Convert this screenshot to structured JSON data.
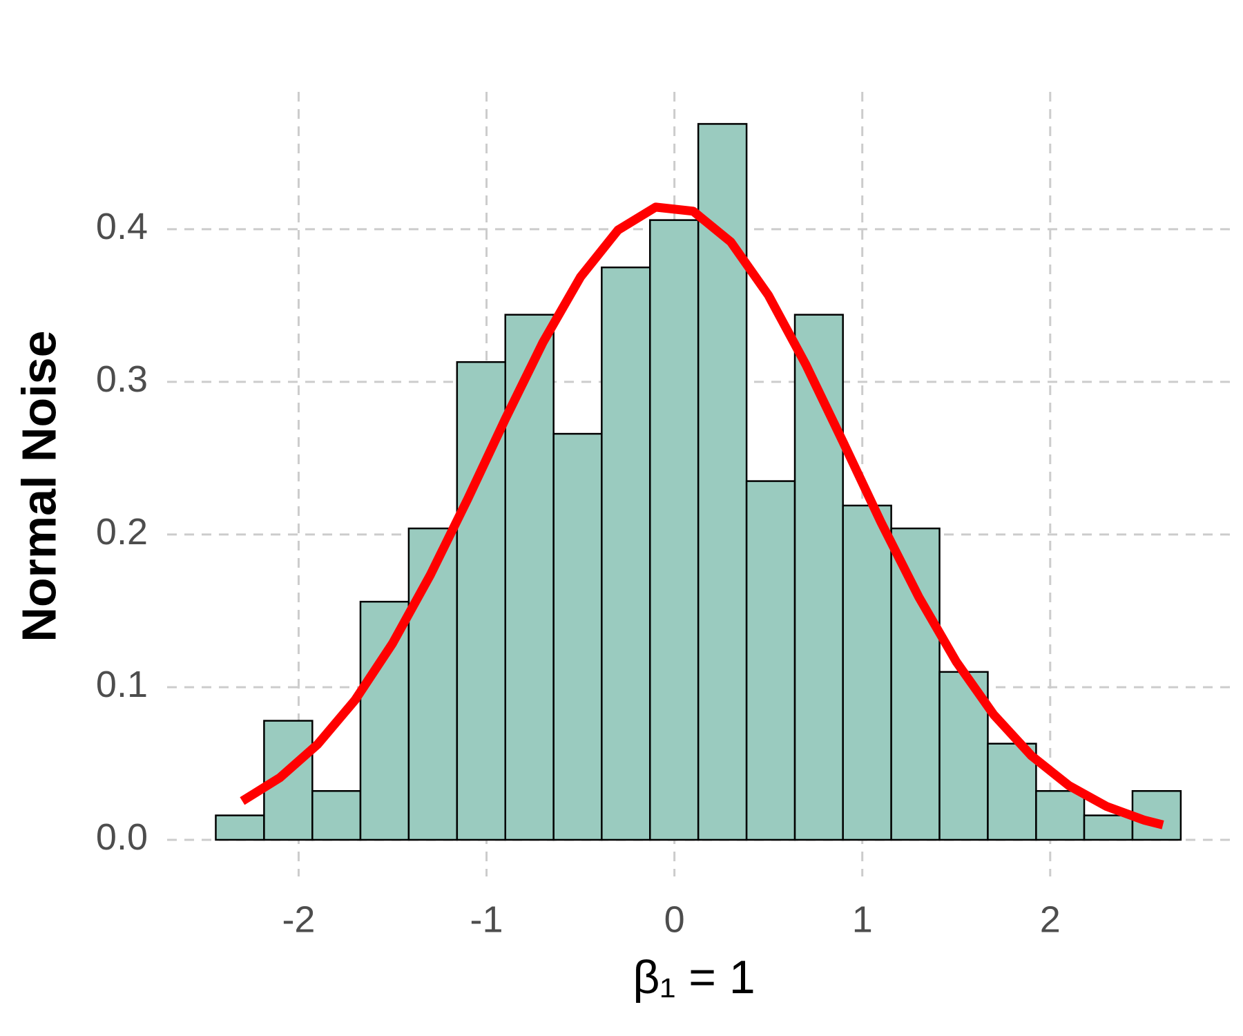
{
  "chart_data": {
    "type": "histogram",
    "xlabel": "β₁ = 1",
    "ylabel": "Normal Noise",
    "bins": [
      -2.441,
      -2.184,
      -1.927,
      -1.671,
      -1.414,
      -1.157,
      -0.9,
      -0.643,
      -0.387,
      -0.13,
      0.127,
      0.384,
      0.641,
      0.897,
      1.154,
      1.411,
      1.668,
      1.925,
      2.181,
      2.438,
      2.695
    ],
    "values": [
      0.016,
      0.078,
      0.032,
      0.156,
      0.204,
      0.313,
      0.344,
      0.266,
      0.375,
      0.406,
      0.469,
      0.235,
      0.344,
      0.219,
      0.204,
      0.11,
      0.063,
      0.032,
      0.016,
      0.032
    ],
    "color": "#9acbbf",
    "edge_color": "#000000",
    "curve": {
      "color": "#ff0000",
      "x": [
        -2.3,
        -2.1,
        -1.9,
        -1.7,
        -1.5,
        -1.3,
        -1.1,
        -0.9,
        -0.7,
        -0.5,
        -0.3,
        -0.1,
        0.1,
        0.3,
        0.5,
        0.7,
        0.9,
        1.1,
        1.3,
        1.5,
        1.7,
        1.9,
        2.1,
        2.3,
        2.5,
        2.6
      ],
      "values": [
        0.0254,
        0.0407,
        0.0624,
        0.0915,
        0.1287,
        0.1733,
        0.2233,
        0.2757,
        0.3258,
        0.3687,
        0.3995,
        0.4145,
        0.4118,
        0.3917,
        0.3568,
        0.3112,
        0.26,
        0.2079,
        0.1592,
        0.1167,
        0.0819,
        0.0551,
        0.0355,
        0.0219,
        0.0129,
        0.0098
      ]
    },
    "xlim": [
      -2.7,
      2.96
    ],
    "ylim": [
      -0.024,
      0.49
    ],
    "xticks": [
      -2,
      -1,
      0,
      1,
      2
    ],
    "yticks": [
      {
        "value": 0,
        "label": "0.0"
      },
      0.1,
      0.2,
      0.3,
      0.4
    ],
    "grid": true
  }
}
